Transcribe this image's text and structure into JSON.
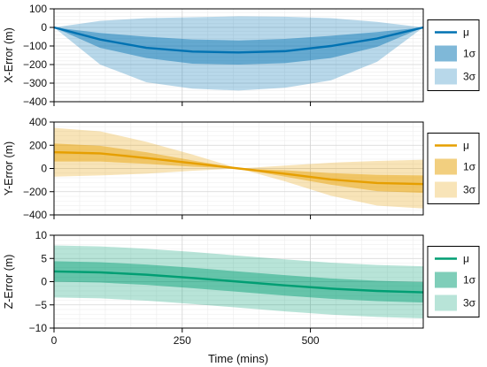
{
  "figure": {
    "xlabel": "Time (mins)",
    "xticks": [
      0,
      250,
      500
    ]
  },
  "chart_data": [
    {
      "type": "area",
      "ylabel": "X-Error (m)",
      "xlim": [
        0,
        720
      ],
      "ylim": [
        -400,
        100
      ],
      "yticks": [
        100,
        0,
        -100,
        -200,
        -300,
        -400
      ],
      "grid": true,
      "legend_position": "right",
      "color": "#0072B2",
      "x": [
        0,
        90,
        180,
        270,
        360,
        450,
        540,
        630,
        720
      ],
      "series": [
        {
          "name": "μ",
          "values": [
            0,
            -65,
            -110,
            -130,
            -135,
            -128,
            -100,
            -60,
            0
          ]
        },
        {
          "name": "1σ",
          "upper": [
            0,
            -30,
            -50,
            -65,
            -70,
            -62,
            -45,
            -25,
            0
          ],
          "lower": [
            0,
            -110,
            -165,
            -195,
            -200,
            -192,
            -165,
            -105,
            0
          ]
        },
        {
          "name": "3σ",
          "upper": [
            0,
            35,
            50,
            55,
            60,
            58,
            50,
            30,
            0
          ],
          "lower": [
            0,
            -200,
            -295,
            -330,
            -340,
            -325,
            -285,
            -185,
            0
          ]
        }
      ]
    },
    {
      "type": "area",
      "ylabel": "Y-Error (m)",
      "xlim": [
        0,
        720
      ],
      "ylim": [
        -400,
        400
      ],
      "yticks": [
        400,
        200,
        0,
        -200,
        -400
      ],
      "grid": true,
      "legend_position": "right",
      "color": "#E69F00",
      "x": [
        0,
        90,
        180,
        270,
        360,
        450,
        540,
        630,
        720
      ],
      "series": [
        {
          "name": "μ",
          "values": [
            140,
            130,
            90,
            45,
            0,
            -45,
            -95,
            -125,
            -135
          ]
        },
        {
          "name": "1σ",
          "upper": [
            215,
            195,
            140,
            70,
            0,
            -15,
            -40,
            -55,
            -60
          ],
          "lower": [
            60,
            60,
            40,
            15,
            0,
            -70,
            -140,
            -195,
            -210
          ]
        },
        {
          "name": "3σ",
          "upper": [
            350,
            320,
            230,
            120,
            0,
            25,
            50,
            65,
            75
          ],
          "lower": [
            -70,
            -60,
            -45,
            -20,
            0,
            -110,
            -235,
            -320,
            -345
          ]
        }
      ]
    },
    {
      "type": "area",
      "ylabel": "Z-Error (m)",
      "xlim": [
        0,
        720
      ],
      "ylim": [
        -10,
        10
      ],
      "yticks": [
        10,
        5,
        0,
        -5,
        -10
      ],
      "grid": true,
      "legend_position": "right",
      "color": "#009E73",
      "x": [
        0,
        90,
        180,
        270,
        360,
        450,
        540,
        630,
        720
      ],
      "series": [
        {
          "name": "μ",
          "values": [
            2.2,
            2.0,
            1.5,
            0.8,
            0.0,
            -0.8,
            -1.5,
            -2.0,
            -2.3
          ]
        },
        {
          "name": "1σ",
          "upper": [
            4.4,
            4.2,
            3.7,
            3.0,
            2.2,
            1.4,
            0.7,
            0.2,
            -0.1
          ],
          "lower": [
            0.0,
            -0.2,
            -0.7,
            -1.4,
            -2.2,
            -3.0,
            -3.7,
            -4.2,
            -4.5
          ]
        },
        {
          "name": "3σ",
          "upper": [
            7.8,
            7.6,
            7.1,
            6.4,
            5.6,
            4.8,
            4.1,
            3.6,
            3.3
          ],
          "lower": [
            -3.4,
            -3.6,
            -4.1,
            -4.8,
            -5.6,
            -6.4,
            -7.1,
            -7.6,
            -7.9
          ]
        }
      ]
    }
  ]
}
